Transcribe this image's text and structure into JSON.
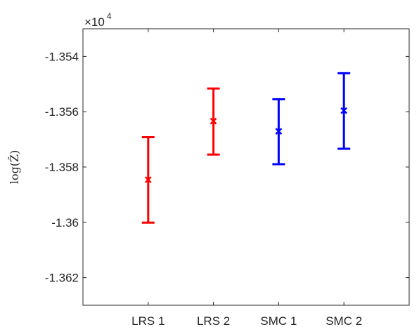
{
  "chart_data": {
    "type": "errorbar",
    "categories": [
      "LRS 1",
      "LRS 2",
      "SMC 1",
      "SMC 2"
    ],
    "ylabel": "log(Ẑ)",
    "exponent_label": {
      "base": "×10",
      "power": "4"
    },
    "yticks": [
      "-1.362",
      "-1.36",
      "-1.358",
      "-1.356",
      "-1.354"
    ],
    "ytick_values": [
      -1.362,
      -1.36,
      -1.358,
      -1.356,
      -1.354
    ],
    "ylim": [
      -1.363,
      -1.353
    ],
    "xlim": [
      0,
      5
    ],
    "grid": false,
    "points": [
      {
        "category": "LRS 1",
        "center": -1.35846,
        "low": -1.36001,
        "high": -1.35692,
        "color": "#ff0000"
      },
      {
        "category": "LRS 2",
        "center": -1.35634,
        "low": -1.35755,
        "high": -1.35516,
        "color": "#ff0000"
      },
      {
        "category": "SMC 1",
        "center": -1.35671,
        "low": -1.3579,
        "high": -1.35555,
        "color": "#0000ff"
      },
      {
        "category": "SMC 2",
        "center": -1.35596,
        "low": -1.35734,
        "high": -1.35461,
        "color": "#0000ff"
      }
    ]
  }
}
